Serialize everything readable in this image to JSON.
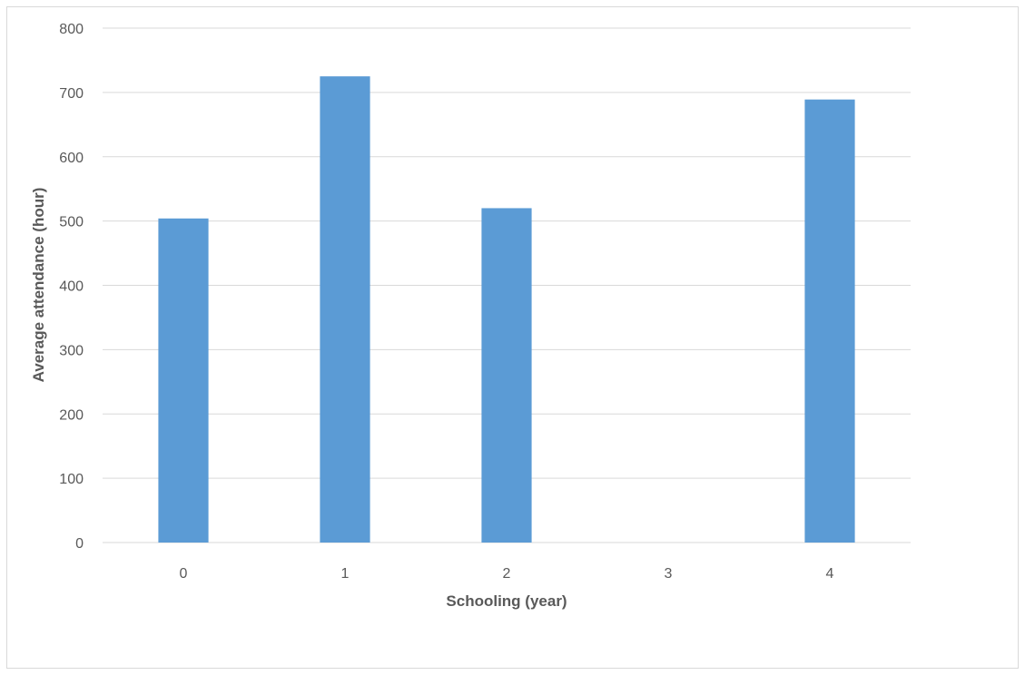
{
  "chart_data": {
    "type": "bar",
    "title": "",
    "xlabel": "Schooling (year)",
    "ylabel": "Average attendance (hour)",
    "categories": [
      "0",
      "1",
      "2",
      "3",
      "4"
    ],
    "values": [
      504,
      725,
      520,
      0,
      689
    ],
    "ylim": [
      0,
      800
    ],
    "yticks": [
      "0",
      "100",
      "200",
      "300",
      "400",
      "500",
      "600",
      "700",
      "800"
    ],
    "grid": "horizontal",
    "legend": "none",
    "bar_color": "#5B9BD5",
    "grid_color": "#d9d9d9"
  }
}
